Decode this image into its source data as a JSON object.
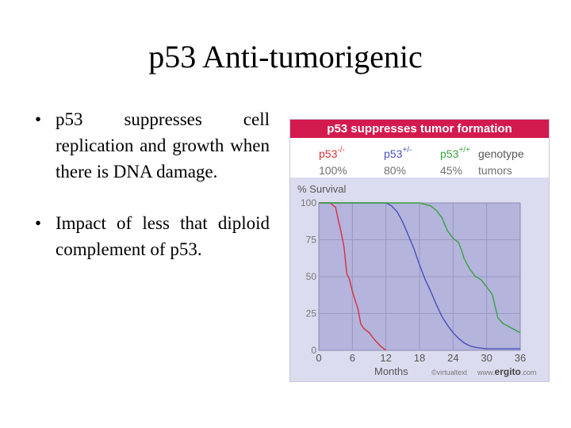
{
  "slide": {
    "title": "p53 Anti-tumorigenic",
    "bullet_symbol": "•",
    "bullets": [
      "p53 suppresses cell replication and growth when there is DNA damage.",
      "Impact of less that diploid complement of p53."
    ]
  },
  "colors": {
    "header_bg": "#d31a4e",
    "plot_bg": "#b4b4dc",
    "minus_minus": "#d8303a",
    "plus_minus": "#4850b8",
    "plus_plus": "#3aa23e",
    "legend_pct": "#707070"
  },
  "chart_data": {
    "type": "line",
    "title": "p53 suppresses tumor formation",
    "ylabel": "% Survival",
    "xlabel": "Months",
    "xlim": [
      0,
      36
    ],
    "ylim": [
      0,
      100
    ],
    "x_ticks": [
      "0",
      "6",
      "12",
      "18",
      "24",
      "30",
      "36"
    ],
    "y_ticks": [
      "0",
      "25",
      "50",
      "75",
      "100"
    ],
    "legend": {
      "genotype_label": "genotype",
      "tumors_label": "tumors",
      "entries": [
        {
          "base": "p53",
          "sup": "-/-",
          "pct": "100%"
        },
        {
          "base": "p53",
          "sup": "+/-",
          "pct": "80%"
        },
        {
          "base": "p53",
          "sup": "+/+",
          "pct": "45%"
        }
      ]
    },
    "series": [
      {
        "name": "p53-/-",
        "points": [
          [
            0,
            100
          ],
          [
            2,
            100
          ],
          [
            3,
            97
          ],
          [
            3.5,
            88
          ],
          [
            4,
            80
          ],
          [
            4.5,
            70
          ],
          [
            5,
            52
          ],
          [
            5.5,
            48
          ],
          [
            6,
            40
          ],
          [
            7,
            28
          ],
          [
            7.5,
            18
          ],
          [
            8,
            15
          ],
          [
            9,
            12
          ],
          [
            10,
            7
          ],
          [
            11,
            3
          ],
          [
            12,
            0
          ]
        ]
      },
      {
        "name": "p53+/-",
        "points": [
          [
            0,
            100
          ],
          [
            12,
            100
          ],
          [
            13,
            98
          ],
          [
            14,
            94
          ],
          [
            15,
            87
          ],
          [
            16,
            78
          ],
          [
            17,
            69
          ],
          [
            18,
            58
          ],
          [
            19,
            48
          ],
          [
            20,
            40
          ],
          [
            21,
            31
          ],
          [
            22,
            23
          ],
          [
            23,
            17
          ],
          [
            24,
            12
          ],
          [
            25,
            8
          ],
          [
            26,
            5
          ],
          [
            27,
            3
          ],
          [
            28,
            2
          ],
          [
            30,
            1
          ],
          [
            36,
            1
          ]
        ]
      },
      {
        "name": "p53+/+",
        "points": [
          [
            0,
            100
          ],
          [
            18,
            100
          ],
          [
            19,
            99
          ],
          [
            20,
            98
          ],
          [
            21,
            95
          ],
          [
            22,
            90
          ],
          [
            23,
            81
          ],
          [
            24,
            76
          ],
          [
            25,
            73
          ],
          [
            25.5,
            68
          ],
          [
            26,
            62
          ],
          [
            27,
            55
          ],
          [
            28,
            50
          ],
          [
            29,
            48
          ],
          [
            30,
            43
          ],
          [
            31,
            38
          ],
          [
            32,
            22
          ],
          [
            33,
            18
          ],
          [
            34,
            16
          ],
          [
            35,
            14
          ],
          [
            36,
            12
          ]
        ]
      }
    ],
    "credit": "©virtualtext",
    "credit_site_prefix": "www.",
    "credit_site_name": "ergito",
    "credit_site_suffix": ".com"
  }
}
